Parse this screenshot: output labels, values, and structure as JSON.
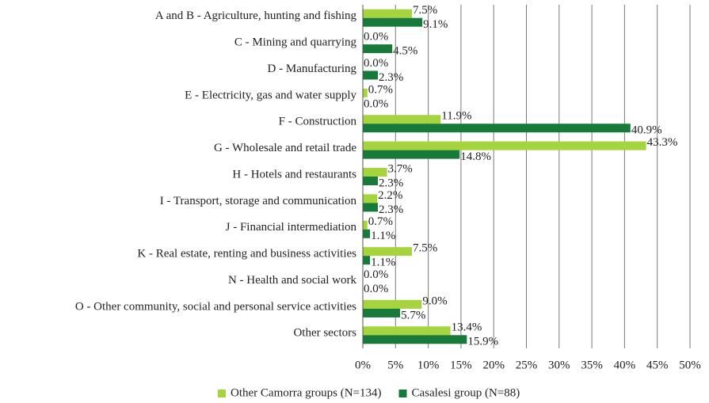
{
  "chart_data": {
    "type": "bar",
    "orientation": "horizontal",
    "categories": [
      "A and B - Agriculture, hunting and fishing",
      "C - Mining and quarrying",
      "D - Manufacturing",
      "E - Electricity, gas and water supply",
      "F - Construction",
      "G - Wholesale and retail trade",
      "H - Hotels and restaurants",
      "I - Transport, storage and communication",
      "J - Financial intermediation",
      "K - Real estate, renting and business activities",
      "N - Health and social work",
      "O - Other community, social and personal service activities",
      "Other sectors"
    ],
    "series": [
      {
        "name": "Other Camorra groups (N=134)",
        "color": "#a5d43f",
        "values": [
          7.5,
          0.0,
          0.0,
          0.7,
          11.9,
          43.3,
          3.7,
          2.2,
          0.7,
          7.5,
          0.0,
          9.0,
          13.4
        ],
        "value_labels": [
          "7.5%",
          "0.0%",
          "0.0%",
          "0.7%",
          "11.9%",
          "43.3%",
          "3.7%",
          "2.2%",
          "0.7%",
          "7.5%",
          "0.0%",
          "9.0%",
          "13.4%"
        ]
      },
      {
        "name": "Casalesi group (N=88)",
        "color": "#17793a",
        "values": [
          9.1,
          4.5,
          2.3,
          0.0,
          40.9,
          14.8,
          2.3,
          2.3,
          1.1,
          1.1,
          0.0,
          5.7,
          15.9
        ],
        "value_labels": [
          "9.1%",
          "4.5%",
          "2.3%",
          "0.0%",
          "40.9%",
          "14.8%",
          "2.3%",
          "2.3%",
          "1.1%",
          "1.1%",
          "0.0%",
          "5.7%",
          "15.9%"
        ]
      }
    ],
    "xlim": [
      0,
      50
    ],
    "xticks": [
      {
        "value": 0,
        "label": "0%"
      },
      {
        "value": 5,
        "label": "5%"
      },
      {
        "value": 10,
        "label": "10%"
      },
      {
        "value": 15,
        "label": "15%"
      },
      {
        "value": 20,
        "label": "20%"
      },
      {
        "value": 25,
        "label": "25%"
      },
      {
        "value": 30,
        "label": "30%"
      },
      {
        "value": 35,
        "label": "35%"
      },
      {
        "value": 40,
        "label": "40%"
      },
      {
        "value": 45,
        "label": "45%"
      },
      {
        "value": 50,
        "label": "50%"
      }
    ],
    "grid": true,
    "legend": "bottom"
  }
}
